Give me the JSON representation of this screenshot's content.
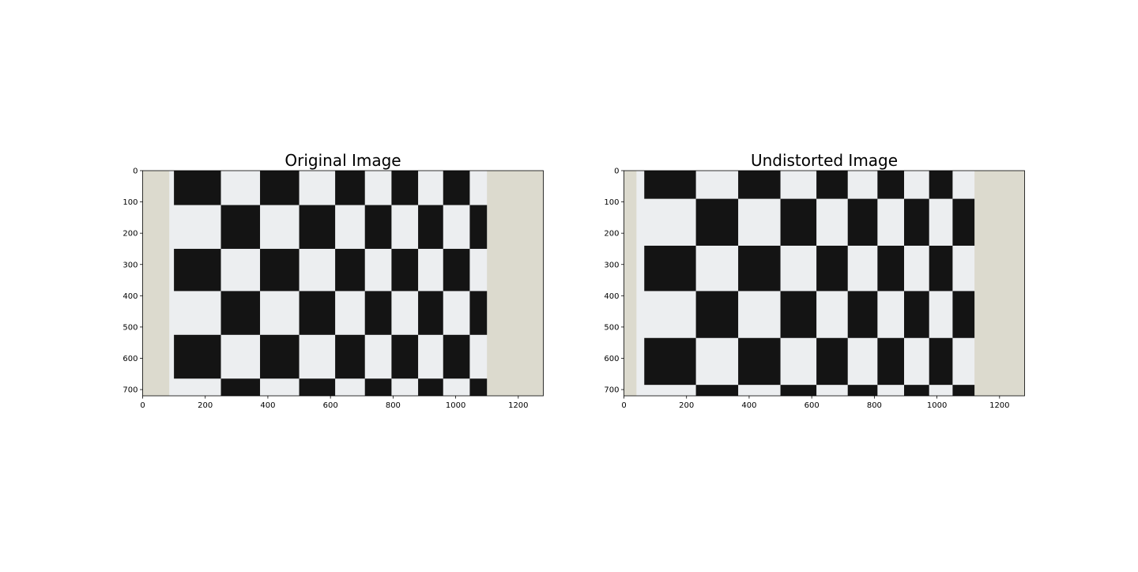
{
  "chart_data": [
    {
      "type": "image",
      "title": "Original Image",
      "xlim": [
        0,
        1280
      ],
      "ylim": [
        720,
        0
      ],
      "xticks": [
        0,
        200,
        400,
        600,
        800,
        1000,
        1200
      ],
      "yticks": [
        0,
        100,
        200,
        300,
        400,
        500,
        600,
        700
      ],
      "xtick_labels": [
        "0",
        "200",
        "400",
        "600",
        "800",
        "1000",
        "1200"
      ],
      "ytick_labels": [
        "0",
        "100",
        "200",
        "300",
        "400",
        "500",
        "600",
        "700"
      ],
      "content": "distorted checkerboard photo",
      "checker_cols": [
        100,
        250,
        375,
        500,
        615,
        710,
        795,
        880,
        960,
        1045,
        1100
      ],
      "checker_rows": [
        0,
        110,
        250,
        385,
        525,
        665,
        720
      ],
      "paper_x": [
        85,
        1100
      ],
      "colors": {
        "wall": "#dcdace",
        "paper": "#eceef0",
        "square": "#141414"
      }
    },
    {
      "type": "image",
      "title": "Undistorted Image",
      "xlim": [
        0,
        1280
      ],
      "ylim": [
        720,
        0
      ],
      "xticks": [
        0,
        200,
        400,
        600,
        800,
        1000,
        1200
      ],
      "yticks": [
        0,
        100,
        200,
        300,
        400,
        500,
        600,
        700
      ],
      "xtick_labels": [
        "0",
        "200",
        "400",
        "600",
        "800",
        "1000",
        "1200"
      ],
      "ytick_labels": [
        "0",
        "100",
        "200",
        "300",
        "400",
        "500",
        "600",
        "700"
      ],
      "content": "undistorted checkerboard photo",
      "checker_cols": [
        65,
        230,
        365,
        500,
        615,
        715,
        810,
        895,
        975,
        1050,
        1120
      ],
      "checker_rows": [
        0,
        90,
        240,
        385,
        535,
        685,
        720
      ],
      "paper_x": [
        40,
        1120
      ],
      "colors": {
        "wall": "#dcdace",
        "paper": "#eceef0",
        "square": "#141414"
      }
    }
  ]
}
